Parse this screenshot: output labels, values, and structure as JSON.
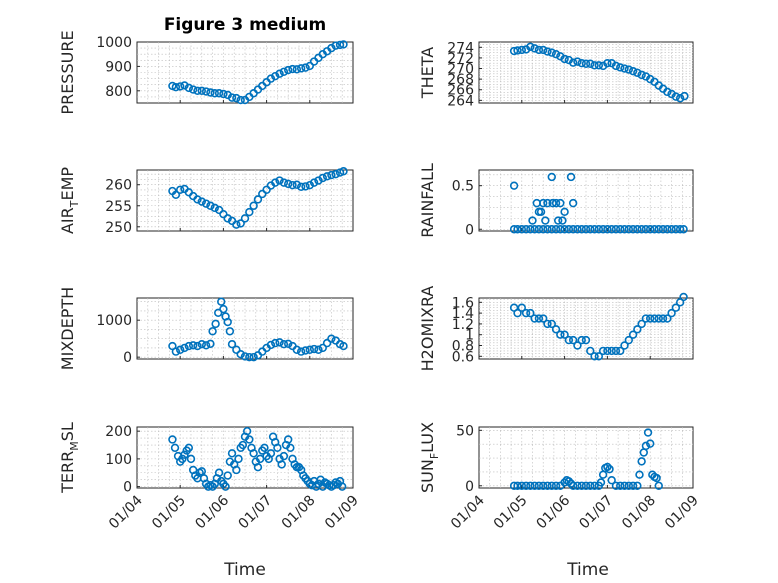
{
  "figure": {
    "title": "Figure 3 medium",
    "xlabel": "Time",
    "marker_color": "#0072BD"
  },
  "chart_data": [
    {
      "type": "scatter",
      "ylabel": "PRESSURE",
      "xlim": [
        0,
        5
      ],
      "ylim": [
        750,
        1000
      ],
      "yticks": [
        800,
        900,
        1000
      ],
      "yticklabels": [
        "800",
        "900",
        "1000"
      ],
      "xticks": [
        0,
        1,
        2,
        3,
        4,
        5
      ],
      "xticklabels": [],
      "x": [
        0.82,
        0.9,
        1.0,
        1.1,
        1.2,
        1.3,
        1.4,
        1.5,
        1.6,
        1.7,
        1.8,
        1.9,
        2.0,
        2.1,
        2.2,
        2.3,
        2.4,
        2.5,
        2.6,
        2.7,
        2.8,
        2.9,
        3.0,
        3.1,
        3.2,
        3.3,
        3.4,
        3.5,
        3.6,
        3.7,
        3.8,
        3.9,
        4.0,
        4.1,
        4.2,
        4.3,
        4.4,
        4.5,
        4.6,
        4.7,
        4.78
      ],
      "y": [
        820,
        815,
        818,
        822,
        812,
        805,
        800,
        800,
        797,
        793,
        790,
        790,
        787,
        783,
        772,
        770,
        762,
        762,
        775,
        790,
        805,
        820,
        835,
        850,
        860,
        870,
        878,
        885,
        889,
        888,
        892,
        895,
        902,
        920,
        935,
        950,
        962,
        975,
        985,
        988,
        990
      ]
    },
    {
      "type": "scatter",
      "ylabel": "THETA",
      "xlim": [
        0,
        5
      ],
      "ylim": [
        263.5,
        275
      ],
      "yticks": [
        264,
        266,
        268,
        270,
        272,
        274
      ],
      "yticklabels": [
        "264",
        "266",
        "268",
        "270",
        "272",
        "274"
      ],
      "xticks": [
        0,
        1,
        2,
        3,
        4,
        5
      ],
      "xticklabels": [],
      "x": [
        0.82,
        0.9,
        1.0,
        1.1,
        1.2,
        1.3,
        1.4,
        1.5,
        1.6,
        1.7,
        1.8,
        1.9,
        2.0,
        2.1,
        2.2,
        2.3,
        2.4,
        2.5,
        2.6,
        2.7,
        2.8,
        2.9,
        3.0,
        3.1,
        3.2,
        3.3,
        3.4,
        3.5,
        3.6,
        3.7,
        3.8,
        3.9,
        4.0,
        4.1,
        4.2,
        4.3,
        4.4,
        4.5,
        4.6,
        4.7,
        4.8
      ],
      "y": [
        273.3,
        273.4,
        273.5,
        273.6,
        274.1,
        273.8,
        273.5,
        273.5,
        273.2,
        273.0,
        272.7,
        272.3,
        271.8,
        271.6,
        271.1,
        271.3,
        271.0,
        270.9,
        270.9,
        270.6,
        270.6,
        270.5,
        271.0,
        271.0,
        270.5,
        270.2,
        270.0,
        269.8,
        269.5,
        269.2,
        268.8,
        268.5,
        268.0,
        267.5,
        266.8,
        266.2,
        265.6,
        265.2,
        264.7,
        264.4,
        264.8
      ]
    },
    {
      "type": "scatter",
      "ylabel": "AIR_TEMP",
      "xlim": [
        0,
        5
      ],
      "ylim": [
        249,
        263.5
      ],
      "yticks": [
        250,
        255,
        260
      ],
      "yticklabels": [
        "250",
        "255",
        "260"
      ],
      "xticks": [
        0,
        1,
        2,
        3,
        4,
        5
      ],
      "xticklabels": [],
      "x": [
        0.82,
        0.9,
        1.0,
        1.1,
        1.2,
        1.3,
        1.4,
        1.5,
        1.6,
        1.7,
        1.8,
        1.9,
        2.0,
        2.1,
        2.2,
        2.3,
        2.4,
        2.5,
        2.6,
        2.7,
        2.8,
        2.9,
        3.0,
        3.1,
        3.2,
        3.3,
        3.4,
        3.5,
        3.6,
        3.7,
        3.8,
        3.9,
        4.0,
        4.1,
        4.2,
        4.3,
        4.4,
        4.5,
        4.6,
        4.7,
        4.78
      ],
      "y": [
        258.5,
        257.6,
        258.8,
        259.0,
        258.2,
        257.3,
        256.5,
        256.0,
        255.5,
        255.0,
        254.5,
        254.0,
        253.0,
        252.0,
        251.4,
        250.5,
        250.8,
        252.0,
        253.5,
        255.0,
        256.5,
        257.8,
        258.8,
        259.8,
        260.5,
        261.0,
        260.5,
        260.2,
        259.9,
        260.0,
        259.5,
        259.6,
        259.9,
        260.5,
        261.0,
        261.6,
        262.0,
        262.3,
        262.5,
        262.9,
        263.2
      ]
    },
    {
      "type": "scatter",
      "ylabel": "RAINFALL",
      "xlim": [
        0,
        5
      ],
      "ylim": [
        -0.02,
        0.68
      ],
      "yticks": [
        0,
        0.5
      ],
      "yticklabels": [
        "0",
        "0.5"
      ],
      "xticks": [
        0,
        1,
        2,
        3,
        4,
        5
      ],
      "xticklabels": [],
      "x": [
        0.82,
        0.9,
        1.0,
        1.1,
        1.2,
        1.3,
        1.4,
        1.5,
        1.6,
        1.7,
        1.8,
        1.9,
        2.0,
        2.1,
        2.2,
        2.3,
        2.4,
        2.5,
        2.6,
        2.7,
        2.8,
        2.9,
        3.0,
        3.1,
        3.2,
        3.3,
        3.4,
        3.5,
        3.6,
        3.7,
        3.8,
        3.9,
        4.0,
        4.1,
        4.2,
        4.3,
        4.4,
        4.5,
        4.6,
        4.7,
        4.78,
        1.25,
        1.35,
        1.45,
        1.5,
        1.55,
        1.4,
        1.6,
        1.8,
        1.9,
        2.0,
        1.95,
        1.85,
        2.2,
        2.15,
        0.82,
        1.7,
        1.72
      ],
      "y": [
        0,
        0,
        0,
        0,
        0,
        0,
        0,
        0,
        0,
        0,
        0,
        0,
        0,
        0,
        0,
        0,
        0,
        0,
        0,
        0,
        0,
        0,
        0,
        0,
        0,
        0,
        0,
        0,
        0,
        0,
        0,
        0,
        0,
        0,
        0,
        0,
        0,
        0,
        0,
        0,
        0,
        0.1,
        0.3,
        0.2,
        0.3,
        0.1,
        0.2,
        0.3,
        0.3,
        0.3,
        0.2,
        0.1,
        0.1,
        0.3,
        0.6,
        0.5,
        0.6,
        0.3
      ]
    },
    {
      "type": "scatter",
      "ylabel": "MIXDEPTH",
      "xlim": [
        0,
        5
      ],
      "ylim": [
        -50,
        1600
      ],
      "yticks": [
        0,
        1000
      ],
      "yticklabels": [
        "0",
        "1000"
      ],
      "xticks": [
        0,
        1,
        2,
        3,
        4,
        5
      ],
      "xticklabels": [],
      "x": [
        0.82,
        0.9,
        1.0,
        1.1,
        1.2,
        1.3,
        1.4,
        1.5,
        1.6,
        1.7,
        1.75,
        1.82,
        1.88,
        1.95,
        2.0,
        2.05,
        2.1,
        2.15,
        2.2,
        2.3,
        2.4,
        2.5,
        2.6,
        2.7,
        2.8,
        2.9,
        3.0,
        3.1,
        3.2,
        3.3,
        3.4,
        3.5,
        3.6,
        3.7,
        3.8,
        3.9,
        4.0,
        4.1,
        4.2,
        4.3,
        4.4,
        4.5,
        4.6,
        4.7,
        4.78
      ],
      "y": [
        300,
        150,
        200,
        250,
        300,
        320,
        300,
        350,
        320,
        360,
        700,
        900,
        1200,
        1500,
        1300,
        1100,
        950,
        700,
        350,
        200,
        80,
        20,
        0,
        0,
        50,
        150,
        250,
        330,
        380,
        400,
        350,
        360,
        300,
        200,
        150,
        180,
        200,
        220,
        200,
        250,
        380,
        500,
        450,
        350,
        300
      ]
    },
    {
      "type": "scatter",
      "ylabel": "H2OMIXRA",
      "xlim": [
        0,
        5
      ],
      "ylim": [
        0.55,
        1.68
      ],
      "yticks": [
        0.6,
        0.8,
        1,
        1.2,
        1.4,
        1.6
      ],
      "yticklabels": [
        "0.6",
        "0.8",
        "1",
        "1.2",
        "1.4",
        "1.6"
      ],
      "xticks": [
        0,
        1,
        2,
        3,
        4,
        5
      ],
      "xticklabels": [],
      "x": [
        0.82,
        0.9,
        1.0,
        1.1,
        1.2,
        1.3,
        1.4,
        1.5,
        1.6,
        1.7,
        1.8,
        1.9,
        2.0,
        2.1,
        2.2,
        2.3,
        2.4,
        2.5,
        2.6,
        2.7,
        2.8,
        2.9,
        3.0,
        3.1,
        3.2,
        3.3,
        3.4,
        3.5,
        3.6,
        3.7,
        3.8,
        3.9,
        4.0,
        4.1,
        4.2,
        4.3,
        4.4,
        4.5,
        4.6,
        4.7,
        4.78
      ],
      "y": [
        1.5,
        1.4,
        1.5,
        1.4,
        1.4,
        1.3,
        1.3,
        1.3,
        1.2,
        1.2,
        1.1,
        1.0,
        1.0,
        0.9,
        0.9,
        0.8,
        0.9,
        0.9,
        0.7,
        0.6,
        0.6,
        0.7,
        0.7,
        0.7,
        0.7,
        0.7,
        0.8,
        0.9,
        1.0,
        1.1,
        1.2,
        1.3,
        1.3,
        1.3,
        1.3,
        1.3,
        1.3,
        1.4,
        1.5,
        1.6,
        1.7
      ]
    },
    {
      "type": "scatter",
      "ylabel": "TERR_MSL",
      "xlim": [
        0,
        5
      ],
      "ylim": [
        -5,
        215
      ],
      "yticks": [
        0,
        100,
        200
      ],
      "yticklabels": [
        "0",
        "100",
        "200"
      ],
      "xticks": [
        0,
        1,
        2,
        3,
        4,
        5
      ],
      "xticklabels": [
        "01/04",
        "01/05",
        "01/06",
        "01/07",
        "01/08",
        "01/09"
      ],
      "x": [
        0.82,
        0.88,
        0.95,
        1.0,
        1.05,
        1.1,
        1.15,
        1.2,
        1.25,
        1.3,
        1.35,
        1.4,
        1.45,
        1.5,
        1.55,
        1.6,
        1.65,
        1.7,
        1.75,
        1.8,
        1.85,
        1.9,
        1.95,
        2.0,
        2.05,
        2.1,
        2.15,
        2.2,
        2.25,
        2.3,
        2.35,
        2.4,
        2.45,
        2.5,
        2.55,
        2.6,
        2.65,
        2.7,
        2.75,
        2.8,
        2.85,
        2.9,
        2.95,
        3.0,
        3.05,
        3.1,
        3.15,
        3.2,
        3.25,
        3.3,
        3.35,
        3.4,
        3.45,
        3.5,
        3.55,
        3.6,
        3.65,
        3.7,
        3.75,
        3.8,
        3.85,
        3.9,
        3.95,
        4.0,
        4.05,
        4.1,
        4.15,
        4.2,
        4.25,
        4.3,
        4.35,
        4.4,
        4.45,
        4.5,
        4.55,
        4.6,
        4.65,
        4.7,
        4.75
      ],
      "y": [
        170,
        140,
        110,
        90,
        100,
        115,
        130,
        140,
        100,
        60,
        40,
        30,
        50,
        55,
        30,
        10,
        0,
        5,
        0,
        10,
        30,
        50,
        20,
        10,
        0,
        40,
        90,
        120,
        80,
        60,
        100,
        140,
        150,
        180,
        200,
        170,
        140,
        120,
        90,
        70,
        100,
        130,
        140,
        110,
        100,
        120,
        180,
        160,
        140,
        100,
        80,
        110,
        150,
        170,
        140,
        100,
        80,
        70,
        70,
        60,
        40,
        30,
        20,
        10,
        5,
        20,
        0,
        10,
        25,
        0,
        15,
        10,
        5,
        0,
        5,
        15,
        10,
        20,
        0
      ]
    },
    {
      "type": "scatter",
      "ylabel": "SUN_FLUX",
      "xlim": [
        0,
        5
      ],
      "ylim": [
        -2,
        53
      ],
      "yticks": [
        0,
        50
      ],
      "yticklabels": [
        "0",
        "50"
      ],
      "xticks": [
        0,
        1,
        2,
        3,
        4,
        5
      ],
      "xticklabels": [
        "01/04",
        "01/05",
        "01/06",
        "01/07",
        "01/08",
        "01/09"
      ],
      "x": [
        0.82,
        0.9,
        1.0,
        1.1,
        1.2,
        1.3,
        1.4,
        1.5,
        1.6,
        1.7,
        1.8,
        1.9,
        2.0,
        2.05,
        2.1,
        2.15,
        2.2,
        2.3,
        2.4,
        2.5,
        2.6,
        2.7,
        2.8,
        2.85,
        2.9,
        2.95,
        3.0,
        3.05,
        3.1,
        3.2,
        3.3,
        3.4,
        3.5,
        3.6,
        3.7,
        3.75,
        3.8,
        3.85,
        3.9,
        3.95,
        4.0,
        4.05,
        4.1,
        4.15,
        4.2
      ],
      "y": [
        0,
        0,
        0,
        0,
        0,
        0,
        0,
        0,
        0,
        0,
        0,
        0,
        3,
        5,
        4,
        2,
        0,
        0,
        0,
        0,
        0,
        0,
        0,
        3,
        10,
        16,
        17,
        15,
        5,
        0,
        0,
        0,
        0,
        0,
        0,
        10,
        22,
        30,
        36,
        48,
        38,
        10,
        8,
        7,
        0
      ]
    }
  ]
}
